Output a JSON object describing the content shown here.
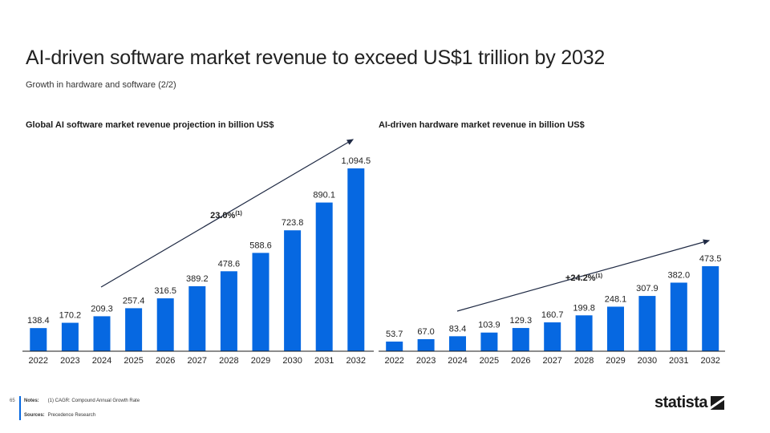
{
  "header": {
    "title": "AI-driven software market revenue to exceed US$1 trillion by 2032",
    "subtitle": "Growth in hardware and software (2/2)"
  },
  "chart_data": [
    {
      "type": "bar",
      "title": "Global AI software market revenue projection in billion US$",
      "categories": [
        "2022",
        "2023",
        "2024",
        "2025",
        "2026",
        "2027",
        "2028",
        "2029",
        "2030",
        "2031",
        "2032"
      ],
      "values": [
        138.4,
        170.2,
        209.3,
        257.4,
        316.5,
        389.2,
        478.6,
        588.6,
        723.8,
        890.1,
        1094.5
      ],
      "value_labels": [
        "138.4",
        "170.2",
        "209.3",
        "257.4",
        "316.5",
        "389.2",
        "478.6",
        "588.6",
        "723.8",
        "890.1",
        "1,094.5"
      ],
      "annotation": "23.0%",
      "annotation_sup": "(1)",
      "color": "#0668e1"
    },
    {
      "type": "bar",
      "title": "AI-driven hardware market revenue in billion US$",
      "categories": [
        "2022",
        "2023",
        "2024",
        "2025",
        "2026",
        "2027",
        "2028",
        "2029",
        "2030",
        "2031",
        "2032"
      ],
      "values": [
        53.7,
        67.0,
        83.4,
        103.9,
        129.3,
        160.7,
        199.8,
        248.1,
        307.9,
        382.0,
        473.5
      ],
      "value_labels": [
        "53.7",
        "67.0",
        "83.4",
        "103.9",
        "129.3",
        "160.7",
        "199.8",
        "248.1",
        "307.9",
        "382.0",
        "473.5"
      ],
      "annotation": "+24.2%",
      "annotation_sup": "(1)",
      "color": "#0668e1"
    }
  ],
  "footer": {
    "page_number": "65",
    "notes_label": "Notes:",
    "notes_text": "(1) CAGR: Compound Annual Growth Rate",
    "sources_label": "Sources:",
    "sources_text": "Precedence Research",
    "logo_text": "statista",
    "logo_icon": "statista-logo-icon"
  }
}
